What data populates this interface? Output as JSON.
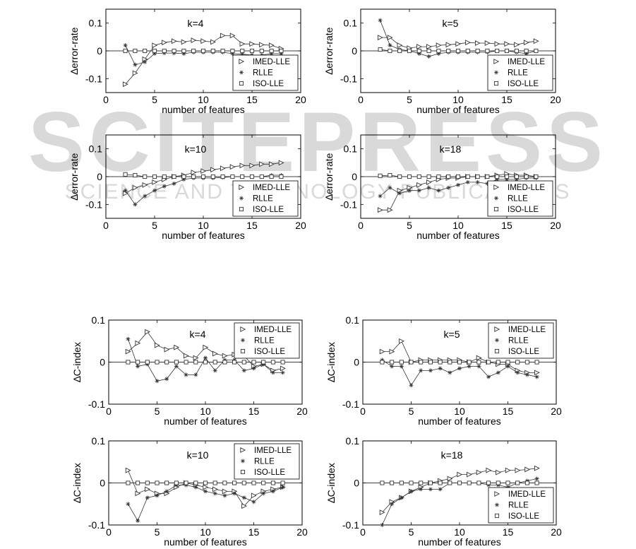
{
  "watermark": {
    "main": "SCITEPRESS",
    "sub": "SCIENCE AND TECHNOLOGY PUBLICATIONS",
    "color": "#d9d9d9"
  },
  "colors": {
    "series": "#333333",
    "axis": "#000000",
    "zero_line": "#000000"
  },
  "chart_data": [
    {
      "type": "line",
      "title": "k=4",
      "xlabel": "number of features",
      "ylabel": "∆error-rate",
      "xlim": [
        0,
        20
      ],
      "ylim": [
        -0.15,
        0.15
      ],
      "xticks": [
        0,
        5,
        10,
        15,
        20
      ],
      "yticks": [
        0.1,
        0,
        -0.1
      ],
      "ytick_labels": [
        "0.1",
        "0",
        "-0.1"
      ],
      "legend": [
        "IMED-LLE",
        "RLLE",
        "ISO-LLE"
      ],
      "legend_position": "bottom-right",
      "x": [
        2,
        3,
        4,
        5,
        6,
        7,
        8,
        9,
        10,
        11,
        12,
        13,
        14,
        15,
        16,
        17,
        18
      ],
      "series": [
        {
          "name": "IMED-LLE",
          "marker": "triangle-right",
          "values": [
            -0.12,
            -0.08,
            -0.03,
            0.02,
            0.03,
            0.035,
            0.032,
            0.038,
            0.035,
            0.032,
            0.055,
            0.055,
            0.025,
            0.025,
            0.022,
            0.02,
            0.008
          ]
        },
        {
          "name": "RLLE",
          "marker": "star",
          "values": [
            0.02,
            -0.05,
            -0.04,
            -0.01,
            -0.008,
            -0.008,
            -0.01,
            -0.005,
            -0.005,
            -0.005,
            -0.005,
            -0.01,
            -0.012,
            -0.015,
            -0.015,
            -0.01,
            -0.01
          ]
        },
        {
          "name": "ISO-LLE",
          "marker": "square",
          "values": [
            0.0,
            0.0,
            0.0,
            0.0,
            0.0,
            0.0,
            0.0,
            0.0,
            0.0,
            0.0,
            0.0,
            0.0,
            0.0,
            0.0,
            0.0,
            0.0,
            0.0
          ]
        }
      ]
    },
    {
      "type": "line",
      "title": "k=5",
      "xlabel": "number of features",
      "ylabel": "∆error-rate",
      "xlim": [
        0,
        20
      ],
      "ylim": [
        -0.15,
        0.15
      ],
      "xticks": [
        0,
        5,
        10,
        15,
        20
      ],
      "yticks": [
        0.1,
        0,
        -0.1
      ],
      "ytick_labels": [
        "0.1",
        "0",
        "-0.1"
      ],
      "legend": [
        "IMED-LLE",
        "RLLE",
        "ISO-LLE"
      ],
      "legend_position": "bottom-right",
      "x": [
        2,
        3,
        4,
        5,
        6,
        7,
        8,
        9,
        10,
        11,
        12,
        13,
        14,
        15,
        16,
        17,
        18
      ],
      "series": [
        {
          "name": "IMED-LLE",
          "marker": "triangle-right",
          "values": [
            0.048,
            0.048,
            0.02,
            0.01,
            0.015,
            0.015,
            0.02,
            0.022,
            0.025,
            0.03,
            0.028,
            0.028,
            0.025,
            0.025,
            0.022,
            0.03,
            0.035
          ]
        },
        {
          "name": "RLLE",
          "marker": "star",
          "values": [
            0.11,
            0.02,
            0.005,
            0.0,
            -0.01,
            -0.02,
            -0.01,
            -0.005,
            -0.005,
            -0.005,
            -0.005,
            -0.005,
            0.0,
            0.0,
            -0.005,
            -0.01,
            0.0
          ]
        },
        {
          "name": "ISO-LLE",
          "marker": "square",
          "values": [
            0.005,
            0.0,
            0.0,
            0.0,
            0.0,
            0.0,
            0.0,
            0.0,
            0.0,
            0.0,
            0.0,
            0.0,
            0.0,
            0.0,
            0.0,
            0.0,
            0.0
          ]
        }
      ]
    },
    {
      "type": "line",
      "title": "k=10",
      "xlabel": "number of features",
      "ylabel": "∆error-rate",
      "xlim": [
        0,
        20
      ],
      "ylim": [
        -0.15,
        0.15
      ],
      "xticks": [
        0,
        5,
        10,
        15,
        20
      ],
      "yticks": [
        0.1,
        0,
        -0.1
      ],
      "ytick_labels": [
        "0.1",
        "0",
        "-0.1"
      ],
      "legend": [
        "IMED-LLE",
        "RLLE",
        "ISO-LLE"
      ],
      "legend_position": "bottom-right",
      "x": [
        2,
        3,
        4,
        5,
        6,
        7,
        8,
        9,
        10,
        11,
        12,
        13,
        14,
        15,
        16,
        17,
        18
      ],
      "series": [
        {
          "name": "IMED-LLE",
          "marker": "triangle-right",
          "values": [
            -0.06,
            -0.04,
            -0.03,
            -0.02,
            -0.01,
            0.0,
            0.005,
            0.015,
            0.02,
            0.025,
            0.03,
            0.035,
            0.04,
            0.04,
            0.045,
            0.045,
            0.05
          ]
        },
        {
          "name": "RLLE",
          "marker": "star",
          "values": [
            -0.05,
            -0.1,
            -0.07,
            -0.05,
            -0.035,
            -0.025,
            -0.01,
            -0.005,
            -0.005,
            -0.005,
            -0.003,
            0.0,
            0.0,
            0.0,
            0.0,
            0.005,
            0.005
          ]
        },
        {
          "name": "ISO-LLE",
          "marker": "square",
          "values": [
            0.008,
            0.005,
            0.0,
            0.0,
            0.0,
            0.0,
            0.0,
            0.0,
            0.0,
            0.0,
            0.0,
            0.0,
            0.0,
            0.0,
            0.0,
            0.0,
            0.0
          ]
        }
      ]
    },
    {
      "type": "line",
      "title": "k=18",
      "xlabel": "number of features",
      "ylabel": "∆error-rate",
      "xlim": [
        0,
        20
      ],
      "ylim": [
        -0.15,
        0.15
      ],
      "xticks": [
        0,
        5,
        10,
        15,
        20
      ],
      "yticks": [
        0.1,
        0,
        -0.1
      ],
      "ytick_labels": [
        "0.1",
        "0",
        "-0.1"
      ],
      "legend": [
        "IMED-LLE",
        "RLLE",
        "ISO-LLE"
      ],
      "legend_position": "bottom-right",
      "x": [
        2,
        3,
        4,
        5,
        6,
        7,
        8,
        9,
        10,
        11,
        12,
        13,
        14,
        15,
        16,
        17,
        18
      ],
      "series": [
        {
          "name": "IMED-LLE",
          "marker": "triangle-right",
          "values": [
            -0.12,
            -0.12,
            -0.05,
            -0.04,
            -0.03,
            -0.02,
            -0.01,
            -0.005,
            -0.005,
            0.0,
            0.0,
            0.0,
            0.005,
            0.01,
            0.005,
            0.005,
            0.0
          ]
        },
        {
          "name": "RLLE",
          "marker": "star",
          "values": [
            -0.07,
            -0.04,
            -0.06,
            -0.05,
            -0.05,
            -0.04,
            -0.05,
            -0.04,
            -0.03,
            -0.02,
            -0.02,
            -0.025,
            -0.01,
            -0.01,
            -0.01,
            -0.005,
            -0.005
          ]
        },
        {
          "name": "ISO-LLE",
          "marker": "square",
          "values": [
            0.003,
            0.005,
            0.0,
            0.0,
            0.0,
            0.0,
            0.0,
            0.0,
            0.0,
            0.0,
            0.0,
            0.0,
            0.0,
            0.0,
            0.0,
            0.0,
            0.0
          ]
        }
      ]
    },
    {
      "type": "line",
      "title": "k=4",
      "xlabel": "number of features",
      "ylabel": "∆C-index",
      "xlim": [
        0,
        20
      ],
      "ylim": [
        -0.1,
        0.1
      ],
      "xticks": [
        0,
        5,
        10,
        15,
        20
      ],
      "yticks": [
        0.1,
        0,
        -0.1
      ],
      "ytick_labels": [
        "0.1",
        "0",
        "-0.1"
      ],
      "legend": [
        "IMED-LLE",
        "RLLE",
        "ISO-LLE"
      ],
      "legend_position": "top-right",
      "x": [
        2,
        3,
        4,
        5,
        6,
        7,
        8,
        9,
        10,
        11,
        12,
        13,
        14,
        15,
        16,
        17,
        18
      ],
      "series": [
        {
          "name": "IMED-LLE",
          "marker": "triangle-right",
          "values": [
            0.025,
            0.045,
            0.072,
            0.04,
            0.03,
            0.035,
            0.015,
            0.01,
            0.035,
            0.02,
            0.015,
            0.018,
            0.015,
            -0.01,
            -0.005,
            -0.02,
            -0.015
          ]
        },
        {
          "name": "RLLE",
          "marker": "star",
          "values": [
            0.055,
            -0.01,
            -0.005,
            -0.045,
            -0.04,
            -0.01,
            -0.03,
            -0.03,
            0.01,
            -0.02,
            0.005,
            0.005,
            -0.02,
            -0.015,
            -0.005,
            -0.025,
            -0.025
          ]
        },
        {
          "name": "ISO-LLE",
          "marker": "square",
          "values": [
            0.0,
            0.0,
            0.0,
            0.0,
            0.0,
            0.0,
            0.0,
            0.0,
            0.0,
            0.0,
            0.0,
            0.0,
            0.0,
            0.0,
            0.0,
            0.0,
            0.0
          ]
        }
      ]
    },
    {
      "type": "line",
      "title": "k=5",
      "xlabel": "number of features",
      "ylabel": "∆C-index",
      "xlim": [
        0,
        20
      ],
      "ylim": [
        -0.1,
        0.1
      ],
      "xticks": [
        0,
        5,
        10,
        15,
        20
      ],
      "yticks": [
        0.1,
        0,
        -0.1
      ],
      "ytick_labels": [
        "0.1",
        "0",
        "-0.1"
      ],
      "legend": [
        "IMED-LLE",
        "RLLE",
        "ISO-LLE"
      ],
      "legend_position": "top-right",
      "x": [
        2,
        3,
        4,
        5,
        6,
        7,
        8,
        9,
        10,
        11,
        12,
        13,
        14,
        15,
        16,
        17,
        18
      ],
      "series": [
        {
          "name": "IMED-LLE",
          "marker": "triangle-right",
          "values": [
            0.025,
            0.025,
            0.05,
            0.0,
            0.005,
            0.005,
            0.005,
            0.005,
            0.005,
            0.0,
            0.01,
            0.0,
            -0.005,
            -0.005,
            -0.02,
            -0.025,
            -0.025
          ]
        },
        {
          "name": "RLLE",
          "marker": "star",
          "values": [
            0.005,
            -0.01,
            -0.01,
            -0.055,
            -0.02,
            -0.02,
            -0.015,
            -0.025,
            -0.015,
            -0.01,
            -0.01,
            -0.035,
            -0.025,
            -0.01,
            -0.025,
            -0.03,
            -0.035
          ]
        },
        {
          "name": "ISO-LLE",
          "marker": "square",
          "values": [
            0.0,
            0.0,
            0.0,
            0.0,
            0.0,
            0.0,
            0.0,
            0.0,
            0.0,
            0.0,
            0.0,
            0.0,
            0.0,
            0.0,
            0.0,
            0.0,
            0.0
          ]
        }
      ]
    },
    {
      "type": "line",
      "title": "k=10",
      "xlabel": "number of features",
      "ylabel": "∆C-index",
      "xlim": [
        0,
        20
      ],
      "ylim": [
        -0.1,
        0.1
      ],
      "xticks": [
        0,
        5,
        10,
        15,
        20
      ],
      "yticks": [
        0.1,
        0,
        -0.1
      ],
      "ytick_labels": [
        "0.1",
        "0",
        "-0.1"
      ],
      "legend": [
        "IMED-LLE",
        "RLLE",
        "ISO-LLE"
      ],
      "legend_position": "top-right",
      "x": [
        2,
        3,
        4,
        5,
        6,
        7,
        8,
        9,
        10,
        11,
        12,
        13,
        14,
        15,
        16,
        17,
        18
      ],
      "series": [
        {
          "name": "IMED-LLE",
          "marker": "triangle-right",
          "values": [
            0.03,
            -0.025,
            -0.015,
            -0.025,
            -0.025,
            -0.01,
            0.0,
            -0.005,
            -0.01,
            -0.015,
            -0.02,
            -0.02,
            -0.055,
            -0.03,
            -0.02,
            -0.015,
            -0.01
          ]
        },
        {
          "name": "RLLE",
          "marker": "star",
          "values": [
            -0.05,
            -0.09,
            -0.035,
            -0.03,
            -0.02,
            -0.005,
            -0.005,
            -0.01,
            -0.02,
            -0.025,
            -0.03,
            -0.025,
            -0.035,
            -0.045,
            -0.025,
            -0.02,
            -0.01
          ]
        },
        {
          "name": "ISO-LLE",
          "marker": "square",
          "values": [
            0.0,
            0.0,
            0.0,
            0.0,
            0.0,
            0.0,
            0.0,
            0.0,
            0.0,
            0.0,
            0.0,
            0.0,
            0.0,
            0.0,
            0.0,
            0.0,
            0.0
          ]
        }
      ]
    },
    {
      "type": "line",
      "title": "k=18",
      "xlabel": "number of features",
      "ylabel": "∆C-index",
      "xlim": [
        0,
        20
      ],
      "ylim": [
        -0.1,
        0.1
      ],
      "xticks": [
        0,
        5,
        10,
        15,
        20
      ],
      "yticks": [
        0.1,
        0,
        -0.1
      ],
      "ytick_labels": [
        "0.1",
        "0",
        "-0.1"
      ],
      "legend": [
        "IMED-LLE",
        "RLLE",
        "ISO-LLE"
      ],
      "legend_position": "bottom-right",
      "x": [
        2,
        3,
        4,
        5,
        6,
        7,
        8,
        9,
        10,
        11,
        12,
        13,
        14,
        15,
        16,
        17,
        18
      ],
      "series": [
        {
          "name": "IMED-LLE",
          "marker": "triangle-right",
          "values": [
            -0.07,
            -0.045,
            -0.035,
            -0.02,
            -0.01,
            0.0,
            0.005,
            0.01,
            0.02,
            0.02,
            0.025,
            0.03,
            0.025,
            0.03,
            0.03,
            0.032,
            0.035
          ]
        },
        {
          "name": "RLLE",
          "marker": "star",
          "values": [
            -0.1,
            -0.05,
            -0.035,
            -0.02,
            -0.015,
            -0.015,
            -0.015,
            0.0,
            0.0,
            0.0,
            0.0,
            -0.005,
            -0.005,
            -0.01,
            0.0,
            0.005,
            0.01
          ]
        },
        {
          "name": "ISO-LLE",
          "marker": "square",
          "values": [
            0.0,
            0.0,
            0.0,
            0.0,
            0.0,
            0.0,
            0.0,
            0.0,
            0.0,
            0.0,
            0.0,
            0.0,
            0.0,
            0.0,
            0.0,
            0.0,
            0.0
          ]
        }
      ]
    }
  ]
}
